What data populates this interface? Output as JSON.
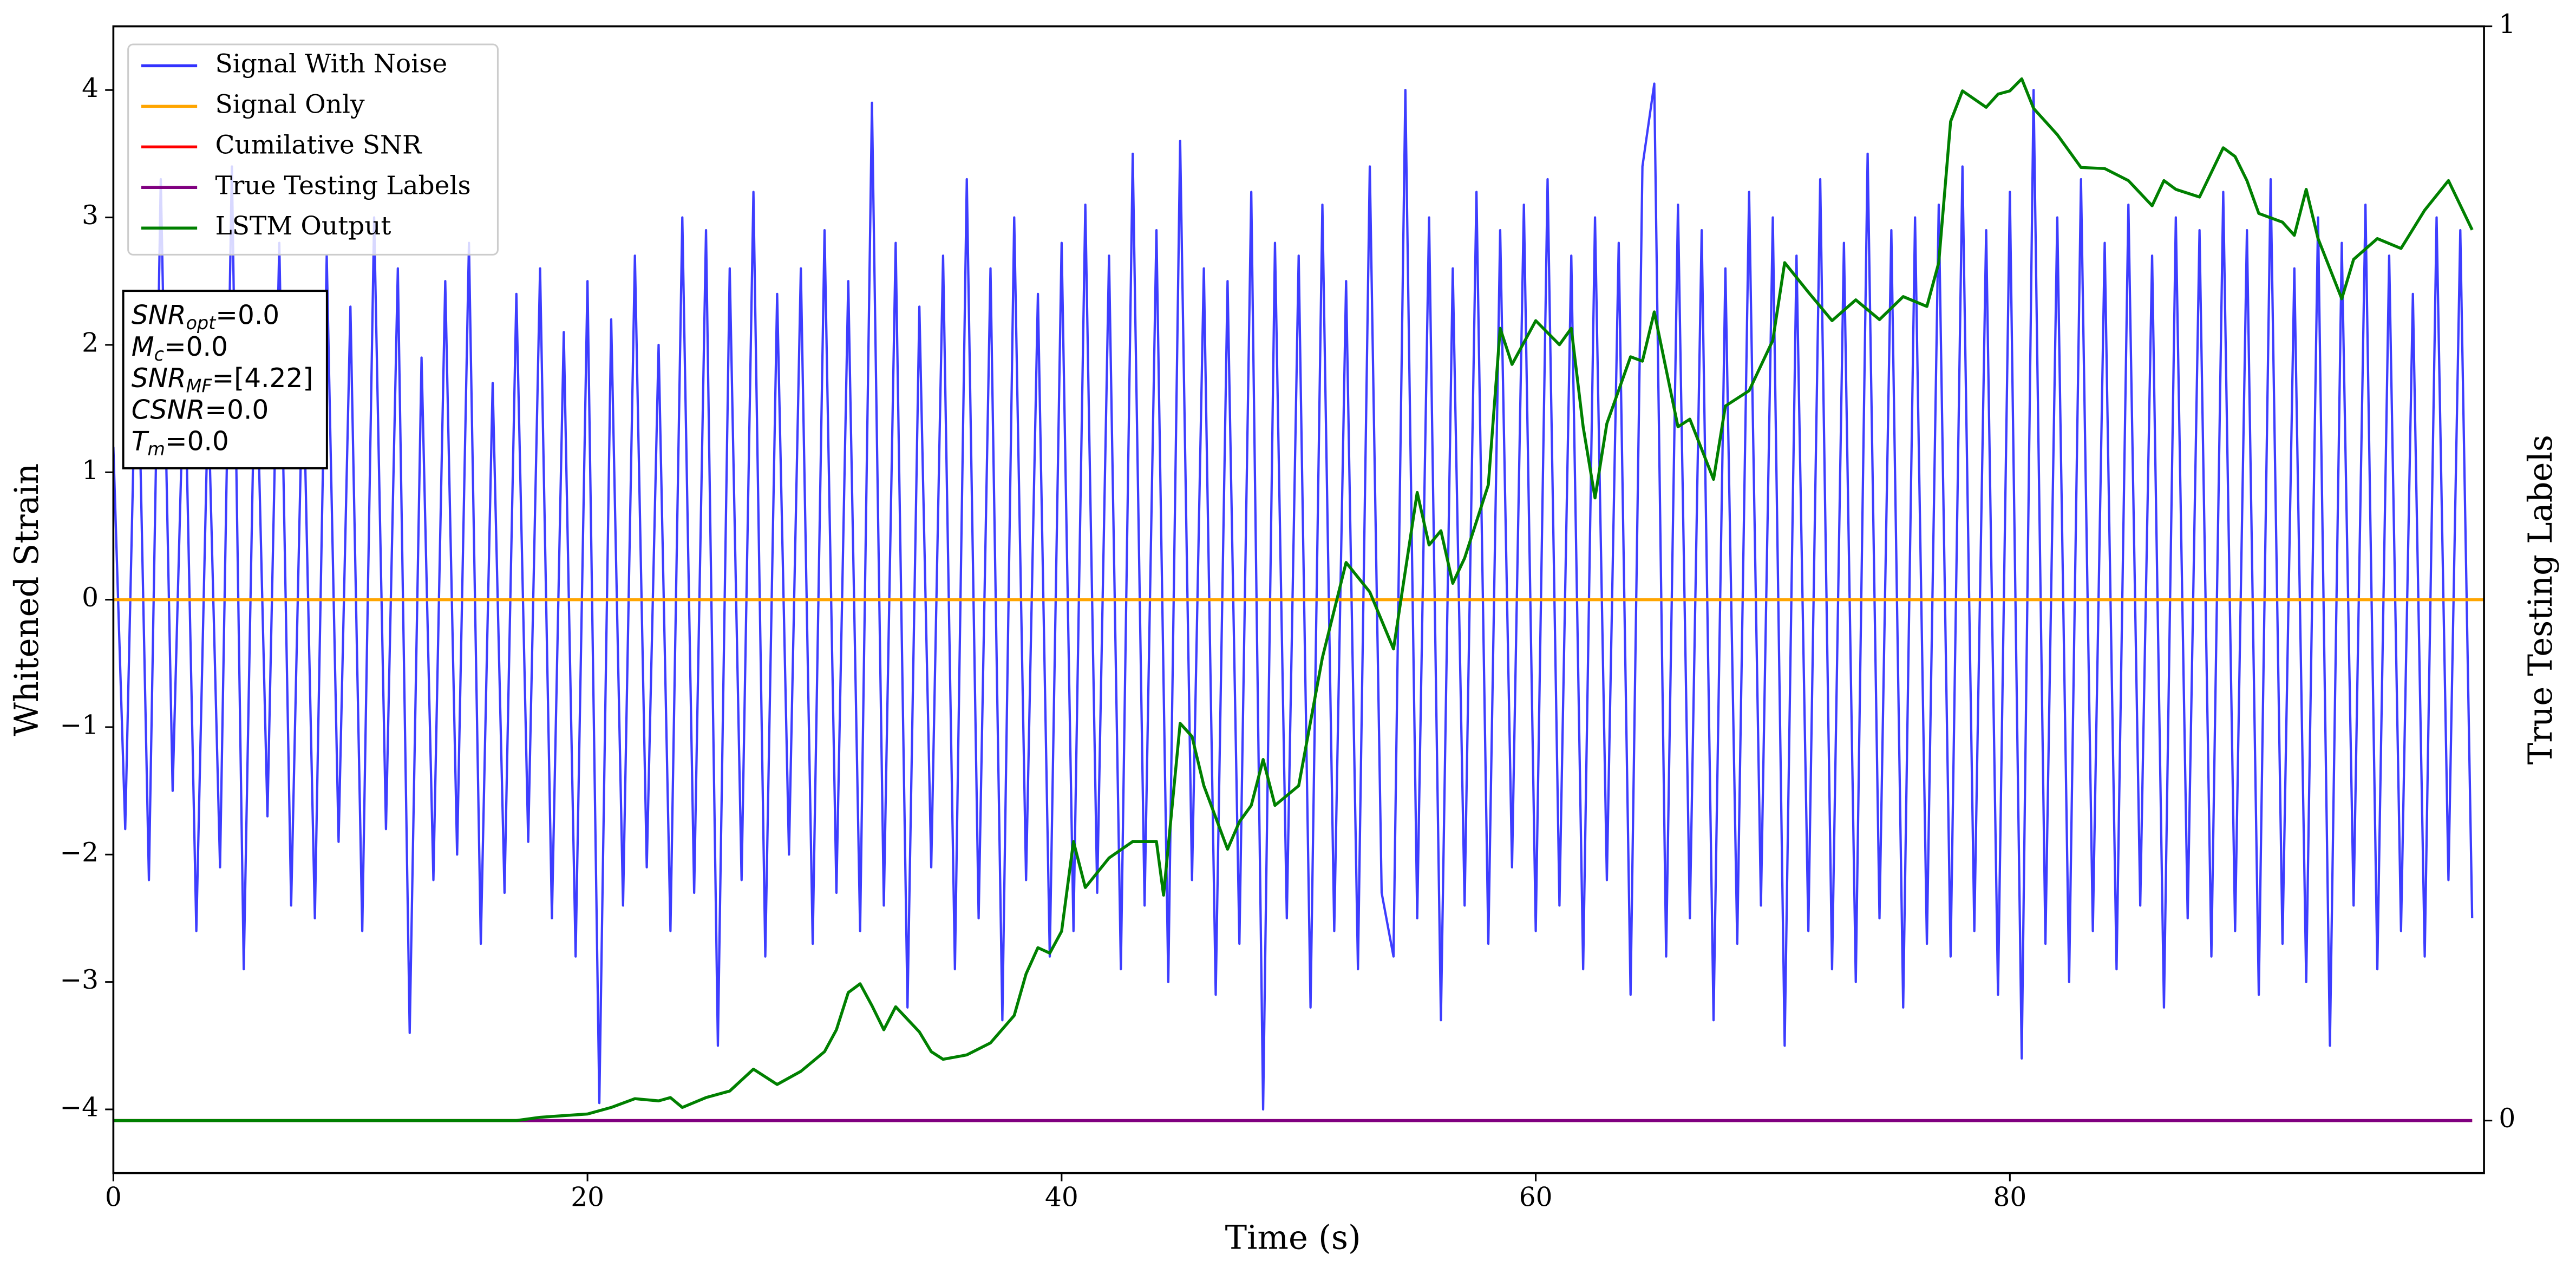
{
  "chart_data": {
    "type": "line",
    "xlabel": "Time (s)",
    "ylabel": "Whitened Strain",
    "y2label": "True Testing Labels",
    "xlim": [
      0,
      100
    ],
    "ylim": [
      -4.5,
      4.5
    ],
    "y2lim": [
      -0.048,
      1
    ],
    "xticks": [
      0,
      20,
      40,
      60,
      80
    ],
    "yticks": [
      {
        "value": -4,
        "label": "−4"
      },
      {
        "value": -3,
        "label": "−3"
      },
      {
        "value": -2,
        "label": "−2"
      },
      {
        "value": -1,
        "label": "−1"
      },
      0,
      1,
      2,
      3,
      4
    ],
    "y2ticks": [
      0,
      1
    ],
    "legend": "upper left",
    "annotations": [
      {
        "name": "SNR",
        "sub": "opt",
        "rest": "=0.0"
      },
      {
        "name": "M",
        "sub": "c",
        "rest": "=0.0"
      },
      {
        "name": "SNR",
        "sub": "MF",
        "rest": "=[4.22]"
      },
      {
        "name": "CSNR",
        "rest": "=0.0"
      },
      {
        "name": "T",
        "sub": "m",
        "rest": "=0.0"
      }
    ],
    "series": [
      {
        "name": "Signal With Noise",
        "color": "#3333ff",
        "x": [
          0,
          0.5,
          1,
          1.5,
          2,
          2.5,
          3,
          3.5,
          4,
          4.5,
          5,
          5.5,
          6,
          6.5,
          7,
          7.5,
          8,
          8.5,
          9,
          9.5,
          10,
          10.5,
          11,
          11.5,
          12,
          12.5,
          13,
          13.5,
          14,
          14.5,
          15,
          15.5,
          16,
          16.5,
          17,
          17.5,
          18,
          18.5,
          19,
          19.5,
          20,
          20.5,
          21,
          21.5,
          22,
          22.5,
          23,
          23.5,
          24,
          24.5,
          25,
          25.5,
          26,
          26.5,
          27,
          27.5,
          28,
          28.5,
          29,
          29.5,
          30,
          30.5,
          31,
          31.5,
          32,
          32.5,
          33,
          33.5,
          34,
          34.5,
          35,
          35.5,
          36,
          36.5,
          37,
          37.5,
          38,
          38.5,
          39,
          39.5,
          40,
          40.5,
          41,
          41.5,
          42,
          42.5,
          43,
          43.5,
          44,
          44.5,
          45,
          45.5,
          46,
          46.5,
          47,
          47.5,
          48,
          48.5,
          49,
          49.5,
          50,
          50.5,
          51,
          51.5,
          52,
          52.5,
          53,
          53.5,
          54,
          54.5,
          55,
          55.5,
          56,
          56.5,
          57,
          57.5,
          58,
          58.5,
          59,
          59.5,
          60,
          60.5,
          61,
          61.5,
          62,
          62.5,
          63,
          63.5,
          64,
          64.5,
          65,
          65.5,
          66,
          66.5,
          67,
          67.5,
          68,
          68.5,
          69,
          69.5,
          70,
          70.5,
          71,
          71.5,
          72,
          72.5,
          73,
          73.5,
          74,
          74.5,
          75,
          75.5,
          76,
          76.5,
          77,
          77.5,
          78,
          78.5,
          79,
          79.5,
          80,
          80.5,
          81,
          81.5,
          82,
          82.5,
          83,
          83.5,
          84,
          84.5,
          85,
          85.5,
          86,
          86.5,
          87,
          87.5,
          88,
          88.5,
          89,
          89.5,
          90,
          90.5,
          91,
          91.5,
          92,
          92.5,
          93,
          93.5,
          94,
          94.5,
          95,
          95.5,
          96,
          96.5,
          97,
          97.5,
          98,
          98.5,
          99,
          99.5
        ],
        "values": [
          1.2,
          -1.8,
          2.4,
          -2.2,
          3.3,
          -1.5,
          2.0,
          -2.6,
          1.6,
          -2.1,
          3.4,
          -2.9,
          2.2,
          -1.7,
          2.8,
          -2.4,
          1.9,
          -2.5,
          2.7,
          -1.9,
          2.3,
          -2.6,
          3.0,
          -1.8,
          2.6,
          -3.4,
          1.9,
          -2.2,
          2.5,
          -2.0,
          2.8,
          -2.7,
          1.7,
          -2.3,
          2.4,
          -1.9,
          2.6,
          -2.5,
          2.1,
          -2.8,
          2.5,
          -3.95,
          2.2,
          -2.4,
          2.7,
          -2.1,
          2.0,
          -2.6,
          3.0,
          -2.3,
          2.9,
          -3.5,
          2.6,
          -2.2,
          3.2,
          -2.8,
          2.4,
          -2.0,
          2.6,
          -2.7,
          2.9,
          -2.3,
          2.5,
          -2.6,
          3.9,
          -2.4,
          2.8,
          -3.2,
          2.3,
          -2.1,
          2.7,
          -2.9,
          3.3,
          -2.5,
          2.6,
          -3.3,
          3.0,
          -2.2,
          2.4,
          -2.8,
          2.8,
          -2.6,
          3.1,
          -2.3,
          2.7,
          -2.9,
          3.5,
          -2.4,
          2.9,
          -3.0,
          3.6,
          -2.2,
          2.6,
          -3.1,
          2.5,
          -2.7,
          3.2,
          -4.0,
          2.8,
          -2.5,
          2.7,
          -3.2,
          3.1,
          -2.6,
          2.5,
          -2.9,
          3.4,
          -2.3,
          -2.8,
          4.0,
          -2.5,
          3.0,
          -3.3,
          2.6,
          -2.4,
          3.2,
          -2.7,
          2.9,
          -2.1,
          3.1,
          -2.6,
          3.3,
          -2.4,
          2.7,
          -2.9,
          3.0,
          -2.2,
          2.8,
          -3.1,
          3.4,
          4.05,
          -2.8,
          3.1,
          -2.5,
          2.9,
          -3.3,
          2.6,
          -2.7,
          3.2,
          -2.4,
          3.0,
          -3.5,
          2.7,
          -2.6,
          3.3,
          -2.9,
          2.8,
          -3.0,
          3.5,
          -2.5,
          2.9,
          -3.2,
          3.0,
          -2.7,
          3.1,
          -2.8,
          3.4,
          -2.6,
          2.9,
          -3.1,
          3.2,
          -3.6,
          4.0,
          -2.7,
          3.0,
          -3.0,
          3.3,
          -2.6,
          2.8,
          -2.9,
          3.1,
          -2.4,
          2.7,
          -3.2,
          3.0,
          -2.5,
          2.9,
          -2.8,
          3.2,
          -2.6,
          2.9,
          -3.1,
          3.3,
          -2.7,
          2.6,
          -3.0,
          3.0,
          -3.5,
          2.8,
          -2.4,
          3.1,
          -2.9,
          2.7,
          -2.6,
          2.4,
          -2.8,
          3.0,
          -2.2,
          2.9,
          -2.5
        ]
      },
      {
        "name": "Signal Only",
        "color": "#ffa500",
        "x": [
          0,
          100
        ],
        "values": [
          0,
          0
        ]
      },
      {
        "name": "Cumilative SNR",
        "color": "#ff0000",
        "axis": "y2",
        "x": [
          0,
          99.5
        ],
        "values": [
          0,
          0
        ]
      },
      {
        "name": "True Testing Labels",
        "color": "#800080",
        "axis": "y2",
        "x": [
          0,
          99.5
        ],
        "values": [
          0,
          0
        ]
      },
      {
        "name": "LSTM Output",
        "color": "#008000",
        "axis": "y2",
        "x": [
          0,
          17,
          18,
          20,
          21,
          22,
          23,
          23.5,
          24,
          25,
          26,
          27,
          28,
          29,
          30,
          30.5,
          31,
          31.5,
          32,
          32.5,
          33,
          34,
          34.5,
          35,
          36,
          37,
          38,
          38.5,
          39,
          39.5,
          40,
          40.5,
          41,
          42,
          43,
          44,
          44.3,
          45,
          45.5,
          46,
          47,
          47.5,
          48,
          48.5,
          49,
          50,
          51,
          52,
          53,
          54,
          55,
          55.5,
          56,
          56.5,
          57,
          58,
          58.5,
          59,
          60,
          61,
          61.5,
          62,
          62.5,
          63,
          64,
          64.5,
          65,
          66,
          66.5,
          67.5,
          68,
          69,
          70,
          70.5,
          71.5,
          72.5,
          73.5,
          74.5,
          75.5,
          76.5,
          77,
          77.5,
          78,
          79,
          79.5,
          80,
          80.5,
          81,
          82,
          83,
          84,
          85,
          86,
          86.5,
          87,
          88,
          89,
          89.5,
          90,
          90.5,
          91.5,
          92,
          92.5,
          93,
          94,
          94.5,
          95.5,
          96.5,
          97.5,
          98.5,
          99.5
        ],
        "values": [
          0,
          0,
          0.003,
          0.006,
          0.012,
          0.02,
          0.018,
          0.021,
          0.012,
          0.021,
          0.027,
          0.047,
          0.033,
          0.045,
          0.063,
          0.083,
          0.117,
          0.125,
          0.105,
          0.083,
          0.104,
          0.081,
          0.063,
          0.056,
          0.06,
          0.071,
          0.096,
          0.134,
          0.158,
          0.153,
          0.173,
          0.255,
          0.213,
          0.24,
          0.255,
          0.255,
          0.206,
          0.363,
          0.351,
          0.306,
          0.248,
          0.273,
          0.288,
          0.33,
          0.288,
          0.306,
          0.423,
          0.51,
          0.483,
          0.431,
          0.574,
          0.526,
          0.539,
          0.491,
          0.514,
          0.581,
          0.724,
          0.691,
          0.731,
          0.709,
          0.724,
          0.634,
          0.569,
          0.637,
          0.698,
          0.694,
          0.739,
          0.634,
          0.641,
          0.586,
          0.653,
          0.667,
          0.713,
          0.784,
          0.757,
          0.731,
          0.75,
          0.732,
          0.753,
          0.744,
          0.784,
          0.913,
          0.941,
          0.926,
          0.938,
          0.941,
          0.952,
          0.925,
          0.901,
          0.871,
          0.87,
          0.859,
          0.836,
          0.859,
          0.851,
          0.844,
          0.889,
          0.881,
          0.859,
          0.829,
          0.821,
          0.809,
          0.851,
          0.806,
          0.751,
          0.787,
          0.806,
          0.797,
          0.832,
          0.859,
          0.814
        ]
      }
    ]
  }
}
